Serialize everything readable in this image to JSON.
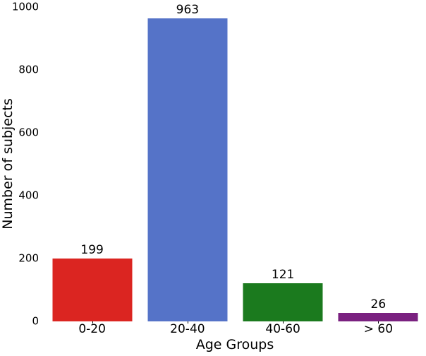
{
  "figure": {
    "background": "#ffffff",
    "text_color": "#000000"
  },
  "chart_data": {
    "type": "bar",
    "title": "",
    "xlabel": "Age Groups",
    "ylabel": "Number of subjects",
    "categories": [
      "0-20",
      "20-40",
      "40-60",
      "> 60"
    ],
    "values": [
      199,
      963,
      121,
      26
    ],
    "value_labels": [
      "199",
      "963",
      "121",
      "26"
    ],
    "bar_colors": [
      "#db2521",
      "#5573c8",
      "#1b7a1e",
      "#7a2180"
    ],
    "ylim": [
      0,
      1000
    ],
    "yticks": [
      0,
      200,
      400,
      600,
      800,
      1000
    ],
    "grid": false,
    "legend": "none",
    "spines_visible": false
  }
}
